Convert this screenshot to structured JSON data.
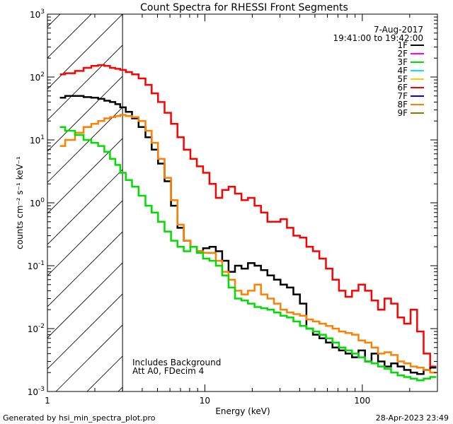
{
  "chart_data": {
    "type": "line",
    "title": "Count Spectra for RHESSI Front Segments",
    "xlabel": "Energy (keV)",
    "ylabel": "counts cm⁻² s⁻¹ keV⁻¹",
    "xscale": "log",
    "yscale": "log",
    "xlim": [
      1.0,
      300.0
    ],
    "ylim": [
      0.001,
      1000.0
    ],
    "x_ticks": [
      {
        "value": 1,
        "label": "1"
      },
      {
        "value": 10,
        "label": "10"
      },
      {
        "value": 100,
        "label": "100"
      }
    ],
    "y_ticks": [
      {
        "value": 0.001,
        "base": "10",
        "exp": "-3"
      },
      {
        "value": 0.01,
        "base": "10",
        "exp": "-2"
      },
      {
        "value": 0.1,
        "base": "10",
        "exp": "-1"
      },
      {
        "value": 1,
        "base": "10",
        "exp": "0"
      },
      {
        "value": 10,
        "base": "10",
        "exp": "1"
      },
      {
        "value": 100,
        "base": "10",
        "exp": "2"
      },
      {
        "value": 1000,
        "base": "10",
        "exp": "3"
      }
    ],
    "hatched_region": {
      "x_max": 3.0
    },
    "date_label": "7-Aug-2017",
    "time_range_label": "19:41:00 to 19:42:00",
    "annotations": [
      "Includes Background",
      "Att A0, FDecim 4"
    ],
    "footer_left": "Generated by hsi_min_spectra_plot.pro",
    "footer_right": "28-Apr-2023 23:49",
    "legend": [
      {
        "name": "1F",
        "color": "#000000"
      },
      {
        "name": "2F",
        "color": "#ff00ff"
      },
      {
        "name": "3F",
        "color": "#00dd00"
      },
      {
        "name": "4F",
        "color": "#00e5ff"
      },
      {
        "name": "5F",
        "color": "#ffcc00"
      },
      {
        "name": "6F",
        "color": "#ff0000"
      },
      {
        "name": "7F",
        "color": "#0000ff"
      },
      {
        "name": "8F",
        "color": "#ff8000"
      },
      {
        "name": "9F",
        "color": "#808000"
      }
    ],
    "series": [
      {
        "name": "6F",
        "color": "#ff0000",
        "width": 2.5,
        "x": [
          1.2,
          1.4,
          1.6,
          1.8,
          2.0,
          2.2,
          2.4,
          2.6,
          2.8,
          3.0,
          3.3,
          3.6,
          4.0,
          4.4,
          4.8,
          5.3,
          5.8,
          6.4,
          7.0,
          7.7,
          8.5,
          9.3,
          10.2,
          11.2,
          12.3,
          13.5,
          14.8,
          16.3,
          17.9,
          19.7,
          21.7,
          23.8,
          26.2,
          28.8,
          31.7,
          34.8,
          38.3,
          42.1,
          46.3,
          50.9,
          56.0,
          61.6,
          67.8,
          74.5,
          82.0,
          90.2,
          99.2,
          109.1,
          120.0,
          132.0,
          145.2,
          159.7,
          175.7,
          193.3,
          212.6,
          233.8,
          257.2,
          283.0
        ],
        "y": [
          110,
          115,
          125,
          140,
          150,
          155,
          150,
          140,
          135,
          130,
          120,
          110,
          95,
          75,
          55,
          40,
          27,
          18,
          11,
          7,
          5,
          3.8,
          3.0,
          2.0,
          1.2,
          1.6,
          1.8,
          1.4,
          1.1,
          1.2,
          0.9,
          0.7,
          0.5,
          0.5,
          0.55,
          0.4,
          0.3,
          0.28,
          0.2,
          0.17,
          0.13,
          0.09,
          0.06,
          0.04,
          0.032,
          0.04,
          0.05,
          0.04,
          0.028,
          0.02,
          0.03,
          0.025,
          0.015,
          0.012,
          0.02,
          0.009,
          0.004,
          0.0025
        ]
      },
      {
        "name": "1F",
        "color": "#000000",
        "width": 2.5,
        "x": [
          1.2,
          1.4,
          1.6,
          1.8,
          2.0,
          2.2,
          2.4,
          2.6,
          2.8,
          3.0,
          3.3,
          3.6,
          4.0,
          4.4,
          4.8,
          5.3,
          5.8,
          6.4,
          7.0,
          7.7,
          8.5,
          9.3,
          10.2,
          11.2,
          12.3,
          13.5,
          14.8,
          16.3,
          17.9,
          19.7,
          21.7,
          23.8,
          26.2,
          28.8,
          31.7,
          34.8,
          38.3,
          42.1,
          46.3,
          50.9,
          56.0,
          61.6,
          67.8,
          74.5,
          82.0,
          90.2,
          99.2,
          109.1,
          120.0,
          132.0,
          145.2,
          159.7,
          175.7,
          193.3,
          212.6,
          233.8,
          257.2,
          283.0
        ],
        "y": [
          47,
          50,
          50,
          48,
          47,
          45,
          42,
          40,
          37,
          33,
          28,
          22,
          16,
          11,
          7,
          4.2,
          2.2,
          0.9,
          0.4,
          0.25,
          0.2,
          0.17,
          0.19,
          0.2,
          0.17,
          0.12,
          0.08,
          0.1,
          0.09,
          0.11,
          0.1,
          0.085,
          0.07,
          0.06,
          0.05,
          0.045,
          0.035,
          0.025,
          0.01,
          0.008,
          0.007,
          0.006,
          0.005,
          0.0045,
          0.004,
          0.0035,
          0.0045,
          0.003,
          0.004,
          0.003,
          0.0025,
          0.0028,
          0.0025,
          0.0022,
          0.002,
          0.0019,
          0.0022,
          0.0024
        ]
      },
      {
        "name": "8F",
        "color": "#ff8000",
        "width": 2.5,
        "x": [
          1.2,
          1.4,
          1.6,
          1.8,
          2.0,
          2.2,
          2.4,
          2.6,
          2.8,
          3.0,
          3.3,
          3.6,
          4.0,
          4.4,
          4.8,
          5.3,
          5.8,
          6.4,
          7.0,
          7.7,
          8.5,
          9.3,
          10.2,
          11.2,
          12.3,
          13.5,
          14.8,
          16.3,
          17.9,
          19.7,
          21.7,
          23.8,
          26.2,
          28.8,
          31.7,
          34.8,
          38.3,
          42.1,
          46.3,
          50.9,
          56.0,
          61.6,
          67.8,
          74.5,
          82.0,
          90.2,
          99.2,
          109.1,
          120.0,
          132.0,
          145.2,
          159.7,
          175.7,
          193.3,
          212.6,
          233.8,
          257.2,
          283.0
        ],
        "y": [
          8,
          10,
          13,
          16,
          18,
          20,
          22,
          23,
          24,
          25,
          24,
          23,
          20,
          14,
          9,
          5,
          2.5,
          1.1,
          0.45,
          0.25,
          0.2,
          0.17,
          0.16,
          0.16,
          0.12,
          0.08,
          0.06,
          0.04,
          0.035,
          0.04,
          0.05,
          0.035,
          0.03,
          0.025,
          0.02,
          0.018,
          0.017,
          0.016,
          0.014,
          0.013,
          0.012,
          0.011,
          0.01,
          0.009,
          0.0085,
          0.008,
          0.0065,
          0.006,
          0.005,
          0.004,
          0.0042,
          0.0038,
          0.003,
          0.0028,
          0.0025,
          0.0024,
          0.0022,
          0.002
        ]
      },
      {
        "name": "3F",
        "color": "#00dd00",
        "width": 2.5,
        "x": [
          1.2,
          1.4,
          1.6,
          1.8,
          2.0,
          2.2,
          2.4,
          2.6,
          2.8,
          3.0,
          3.3,
          3.6,
          4.0,
          4.4,
          4.8,
          5.3,
          5.8,
          6.4,
          7.0,
          7.7,
          8.5,
          9.3,
          10.2,
          11.2,
          12.3,
          13.5,
          14.8,
          16.3,
          17.9,
          19.7,
          21.7,
          23.8,
          26.2,
          28.8,
          31.7,
          34.8,
          38.3,
          42.1,
          46.3,
          50.9,
          56.0,
          61.6,
          67.8,
          74.5,
          82.0,
          90.2,
          99.2,
          109.1,
          120.0,
          132.0,
          145.2,
          159.7,
          175.7,
          193.3,
          212.6,
          233.8,
          257.2,
          283.0
        ],
        "y": [
          16,
          14,
          12,
          10,
          9,
          8,
          6.5,
          5,
          4,
          3,
          2.3,
          1.8,
          1.3,
          0.9,
          0.7,
          0.5,
          0.35,
          0.25,
          0.2,
          0.17,
          0.2,
          0.16,
          0.13,
          0.12,
          0.1,
          0.07,
          0.045,
          0.03,
          0.028,
          0.025,
          0.022,
          0.021,
          0.02,
          0.018,
          0.016,
          0.015,
          0.013,
          0.011,
          0.01,
          0.009,
          0.008,
          0.007,
          0.006,
          0.005,
          0.0045,
          0.004,
          0.0035,
          0.003,
          0.0028,
          0.0025,
          0.0023,
          0.002,
          0.0018,
          0.0017,
          0.0016,
          0.0015,
          0.0016,
          0.0017
        ]
      }
    ]
  }
}
